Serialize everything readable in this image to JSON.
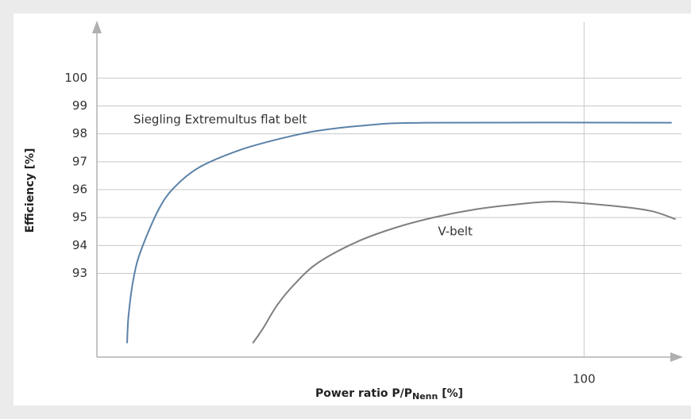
{
  "chart_data": {
    "type": "line",
    "ylabel": "Efficiency [%]",
    "xlabel": "Power ratio P/P",
    "xlabel_sub": "Nenn",
    "xlabel_suffix": " [%]",
    "xlim": [
      0,
      120
    ],
    "ylim": [
      90,
      102
    ],
    "xticks": [
      100
    ],
    "yticks": [
      93,
      94,
      95,
      96,
      97,
      98,
      99,
      100
    ],
    "grid": true,
    "annotations": [
      {
        "text": "Siegling Extremultus flat belt",
        "x": 7.5,
        "y": 98.5
      },
      {
        "text": "V-belt",
        "x": 70,
        "y": 94.5
      }
    ],
    "series": [
      {
        "color": "#5b82a8",
        "x": [
          6.2,
          6.5,
          7.5,
          9,
          12.7,
          16,
          21,
          29,
          37,
          45,
          55,
          68,
          118
        ],
        "values": [
          90.5,
          91.5,
          92.8,
          93.8,
          95.3,
          96.1,
          96.8,
          97.4,
          97.8,
          98.1,
          98.3,
          98.4,
          98.4
        ]
      },
      {
        "color": "#7f7f7f",
        "x": [
          32,
          34,
          37,
          40.5,
          45.3,
          53.5,
          61.7,
          69.8,
          77.9,
          86,
          94.3,
          107,
          113.9,
          118.8
        ],
        "values": [
          90.5,
          91,
          91.86,
          92.6,
          93.37,
          94.14,
          94.66,
          95.03,
          95.3,
          95.47,
          95.57,
          95.4,
          95.23,
          94.94
        ]
      }
    ]
  }
}
